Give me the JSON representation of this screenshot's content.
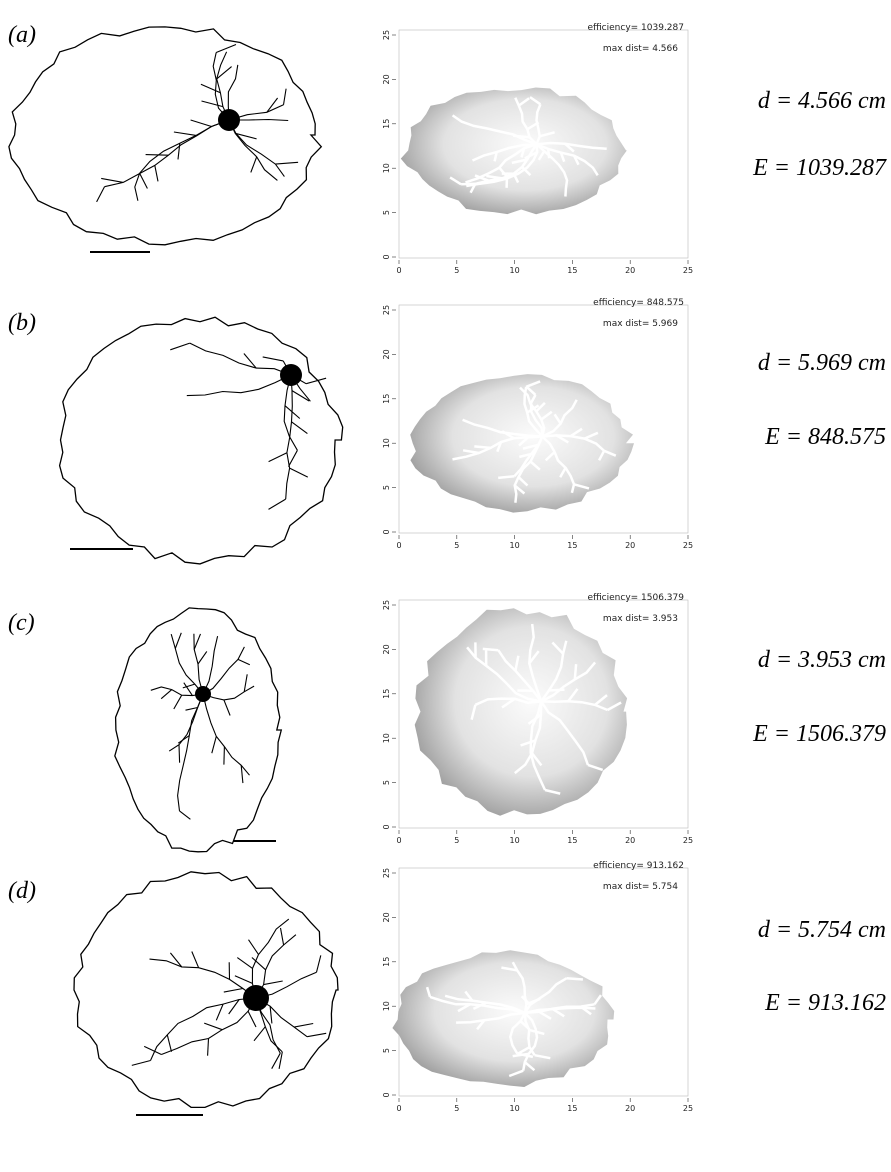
{
  "axis": {
    "xlim": [
      0,
      25
    ],
    "ylim": [
      0,
      25
    ],
    "xticks": [
      0,
      5,
      10,
      15,
      20,
      25
    ],
    "yticks": [
      0,
      5,
      10,
      15,
      20,
      25
    ]
  },
  "panels": [
    {
      "label": "(a)",
      "efficiency": "efficiency= 1039.287",
      "max_dist": "max dist= 4.566",
      "d": "d = 4.566 cm",
      "E": "E = 1039.287"
    },
    {
      "label": "(b)",
      "efficiency": "efficiency= 848.575",
      "max_dist": "max dist= 5.969",
      "d": "d = 5.969 cm",
      "E": "E = 848.575"
    },
    {
      "label": "(c)",
      "efficiency": "efficiency= 1506.379",
      "max_dist": "max dist= 3.953",
      "d": "d = 3.953 cm",
      "E": "E = 1506.379"
    },
    {
      "label": "(d)",
      "efficiency": "efficiency= 913.162",
      "max_dist": "max dist= 5.754",
      "d": "d = 5.754 cm",
      "E": "E = 913.162"
    }
  ]
}
